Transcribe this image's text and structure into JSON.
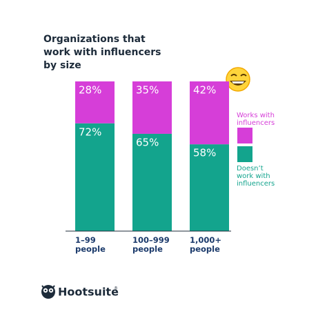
{
  "chart_data": {
    "type": "stacked_bar",
    "title": "Organizations that work with influencers by size",
    "categories": [
      "1–99 people",
      "100–999 people",
      "1,000+ people"
    ],
    "series": [
      {
        "name": "Doesn’t work with influencers",
        "color": "#13a48d",
        "values": [
          72,
          65,
          58
        ],
        "value_labels": [
          "72%",
          "65%",
          "58%"
        ]
      },
      {
        "name": "Works with influencers",
        "color": "#d63ed8",
        "values": [
          28,
          35,
          42
        ],
        "value_labels": [
          "28%",
          "35%",
          "42%"
        ]
      }
    ],
    "ylim": [
      0,
      100
    ]
  },
  "logo": {
    "name": "Hootsuite",
    "mark": "®"
  }
}
